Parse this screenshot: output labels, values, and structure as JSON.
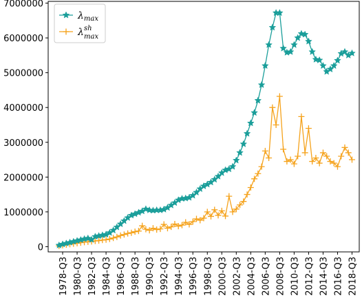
{
  "chart_data": {
    "type": "line",
    "title": "",
    "xlabel": "",
    "ylabel": "",
    "ylim": [
      -150000,
      7050000
    ],
    "xlim": [
      "1976-Q3",
      "2019-Q3"
    ],
    "y_ticks": [
      "0",
      "1000000",
      "2000000",
      "3000000",
      "4000000",
      "5000000",
      "6000000",
      "7000000"
    ],
    "x_ticks": [
      "1978-Q3",
      "1980-Q3",
      "1982-Q3",
      "1984-Q3",
      "1986-Q3",
      "1988-Q3",
      "1990-Q3",
      "1992-Q3",
      "1994-Q3",
      "1996-Q3",
      "1998-Q3",
      "2000-Q3",
      "2002-Q3",
      "2004-Q3",
      "2006-Q3",
      "2008-Q3",
      "2010-Q3",
      "2012-Q3",
      "2014-Q3",
      "2016-Q3",
      "2018-Q3"
    ],
    "grid": false,
    "legend": "top-left",
    "series": [
      {
        "name": "λ",
        "subscript": "max",
        "superscript": "",
        "color": "#1a9e9a",
        "marker": "star",
        "points": [
          [
            "1978-Q1",
            40000
          ],
          [
            "1978-Q3",
            70000
          ],
          [
            "1979-Q1",
            95000
          ],
          [
            "1979-Q3",
            120000
          ],
          [
            "1980-Q1",
            145000
          ],
          [
            "1980-Q3",
            170000
          ],
          [
            "1981-Q1",
            195000
          ],
          [
            "1981-Q3",
            220000
          ],
          [
            "1982-Q1",
            240000
          ],
          [
            "1982-Q3",
            200000
          ],
          [
            "1983-Q1",
            290000
          ],
          [
            "1983-Q3",
            310000
          ],
          [
            "1984-Q1",
            330000
          ],
          [
            "1984-Q3",
            350000
          ],
          [
            "1985-Q1",
            400000
          ],
          [
            "1985-Q3",
            470000
          ],
          [
            "1986-Q1",
            560000
          ],
          [
            "1986-Q3",
            650000
          ],
          [
            "1987-Q1",
            740000
          ],
          [
            "1987-Q3",
            830000
          ],
          [
            "1988-Q1",
            900000
          ],
          [
            "1988-Q3",
            940000
          ],
          [
            "1989-Q1",
            980000
          ],
          [
            "1989-Q3",
            1020000
          ],
          [
            "1990-Q1",
            1080000
          ],
          [
            "1990-Q3",
            1050000
          ],
          [
            "1991-Q1",
            1040000
          ],
          [
            "1991-Q3",
            1050000
          ],
          [
            "1992-Q1",
            1050000
          ],
          [
            "1992-Q3",
            1070000
          ],
          [
            "1993-Q1",
            1120000
          ],
          [
            "1993-Q3",
            1190000
          ],
          [
            "1994-Q1",
            1260000
          ],
          [
            "1994-Q3",
            1340000
          ],
          [
            "1995-Q1",
            1380000
          ],
          [
            "1995-Q3",
            1390000
          ],
          [
            "1996-Q1",
            1410000
          ],
          [
            "1996-Q3",
            1470000
          ],
          [
            "1997-Q1",
            1560000
          ],
          [
            "1997-Q3",
            1660000
          ],
          [
            "1998-Q1",
            1740000
          ],
          [
            "1998-Q3",
            1790000
          ],
          [
            "1999-Q1",
            1850000
          ],
          [
            "1999-Q3",
            1930000
          ],
          [
            "2000-Q1",
            2020000
          ],
          [
            "2000-Q3",
            2120000
          ],
          [
            "2001-Q1",
            2200000
          ],
          [
            "2001-Q3",
            2230000
          ],
          [
            "2002-Q1",
            2300000
          ],
          [
            "2002-Q3",
            2480000
          ],
          [
            "2003-Q1",
            2700000
          ],
          [
            "2003-Q3",
            2950000
          ],
          [
            "2004-Q1",
            3250000
          ],
          [
            "2004-Q3",
            3550000
          ],
          [
            "2005-Q1",
            3850000
          ],
          [
            "2005-Q3",
            4200000
          ],
          [
            "2006-Q1",
            4650000
          ],
          [
            "2006-Q3",
            5200000
          ],
          [
            "2007-Q1",
            5800000
          ],
          [
            "2007-Q3",
            6300000
          ],
          [
            "2008-Q1",
            6720000
          ],
          [
            "2008-Q3",
            6720000
          ],
          [
            "2009-Q1",
            5700000
          ],
          [
            "2009-Q3",
            5580000
          ],
          [
            "2010-Q1",
            5600000
          ],
          [
            "2010-Q3",
            5800000
          ],
          [
            "2011-Q1",
            6000000
          ],
          [
            "2011-Q3",
            6120000
          ],
          [
            "2012-Q1",
            6100000
          ],
          [
            "2012-Q3",
            5900000
          ],
          [
            "2013-Q1",
            5600000
          ],
          [
            "2013-Q3",
            5380000
          ],
          [
            "2014-Q1",
            5360000
          ],
          [
            "2014-Q3",
            5200000
          ],
          [
            "2015-Q1",
            5030000
          ],
          [
            "2015-Q3",
            5100000
          ],
          [
            "2016-Q1",
            5200000
          ],
          [
            "2016-Q3",
            5350000
          ],
          [
            "2017-Q1",
            5550000
          ],
          [
            "2017-Q3",
            5600000
          ],
          [
            "2018-Q1",
            5500000
          ],
          [
            "2018-Q3",
            5560000
          ]
        ]
      },
      {
        "name": "λ",
        "subscript": "max",
        "superscript": "sh",
        "color": "#f5a21b",
        "marker": "plus",
        "points": [
          [
            "1978-Q1",
            20000
          ],
          [
            "1978-Q3",
            40000
          ],
          [
            "1979-Q1",
            55000
          ],
          [
            "1979-Q3",
            70000
          ],
          [
            "1980-Q1",
            85000
          ],
          [
            "1980-Q3",
            100000
          ],
          [
            "1981-Q1",
            115000
          ],
          [
            "1981-Q3",
            130000
          ],
          [
            "1982-Q1",
            140000
          ],
          [
            "1982-Q3",
            150000
          ],
          [
            "1983-Q1",
            165000
          ],
          [
            "1983-Q3",
            175000
          ],
          [
            "1984-Q1",
            190000
          ],
          [
            "1984-Q3",
            200000
          ],
          [
            "1985-Q1",
            220000
          ],
          [
            "1985-Q3",
            250000
          ],
          [
            "1986-Q1",
            280000
          ],
          [
            "1986-Q3",
            320000
          ],
          [
            "1987-Q1",
            350000
          ],
          [
            "1987-Q3",
            380000
          ],
          [
            "1988-Q1",
            400000
          ],
          [
            "1988-Q3",
            430000
          ],
          [
            "1989-Q1",
            450000
          ],
          [
            "1989-Q3",
            600000
          ],
          [
            "1990-Q1",
            500000
          ],
          [
            "1990-Q3",
            470000
          ],
          [
            "1991-Q1",
            530000
          ],
          [
            "1991-Q3",
            490000
          ],
          [
            "1992-Q1",
            510000
          ],
          [
            "1992-Q3",
            640000
          ],
          [
            "1993-Q1",
            530000
          ],
          [
            "1993-Q3",
            570000
          ],
          [
            "1994-Q1",
            650000
          ],
          [
            "1994-Q3",
            590000
          ],
          [
            "1995-Q1",
            620000
          ],
          [
            "1995-Q3",
            700000
          ],
          [
            "1996-Q1",
            640000
          ],
          [
            "1996-Q3",
            720000
          ],
          [
            "1997-Q1",
            800000
          ],
          [
            "1997-Q3",
            760000
          ],
          [
            "1998-Q1",
            820000
          ],
          [
            "1998-Q3",
            1000000
          ],
          [
            "1999-Q1",
            870000
          ],
          [
            "1999-Q3",
            1060000
          ],
          [
            "2000-Q1",
            900000
          ],
          [
            "2000-Q3",
            1030000
          ],
          [
            "2001-Q1",
            880000
          ],
          [
            "2001-Q3",
            1450000
          ],
          [
            "2002-Q1",
            1000000
          ],
          [
            "2002-Q3",
            1080000
          ],
          [
            "2003-Q1",
            1200000
          ],
          [
            "2003-Q3",
            1300000
          ],
          [
            "2004-Q1",
            1500000
          ],
          [
            "2004-Q3",
            1700000
          ],
          [
            "2005-Q1",
            1950000
          ],
          [
            "2005-Q3",
            2100000
          ],
          [
            "2006-Q1",
            2300000
          ],
          [
            "2006-Q3",
            2750000
          ],
          [
            "2007-Q1",
            2550000
          ],
          [
            "2007-Q3",
            4000000
          ],
          [
            "2008-Q1",
            3500000
          ],
          [
            "2008-Q3",
            4320000
          ],
          [
            "2009-Q1",
            2800000
          ],
          [
            "2009-Q3",
            2450000
          ],
          [
            "2010-Q1",
            2500000
          ],
          [
            "2010-Q3",
            2380000
          ],
          [
            "2011-Q1",
            2600000
          ],
          [
            "2011-Q3",
            3740000
          ],
          [
            "2012-Q1",
            2700000
          ],
          [
            "2012-Q3",
            3400000
          ],
          [
            "2013-Q1",
            2450000
          ],
          [
            "2013-Q3",
            2550000
          ],
          [
            "2014-Q1",
            2400000
          ],
          [
            "2014-Q3",
            2700000
          ],
          [
            "2015-Q1",
            2600000
          ],
          [
            "2015-Q3",
            2450000
          ],
          [
            "2016-Q1",
            2400000
          ],
          [
            "2016-Q3",
            2300000
          ],
          [
            "2017-Q1",
            2600000
          ],
          [
            "2017-Q3",
            2850000
          ],
          [
            "2018-Q1",
            2700000
          ],
          [
            "2018-Q3",
            2500000
          ]
        ]
      }
    ]
  }
}
